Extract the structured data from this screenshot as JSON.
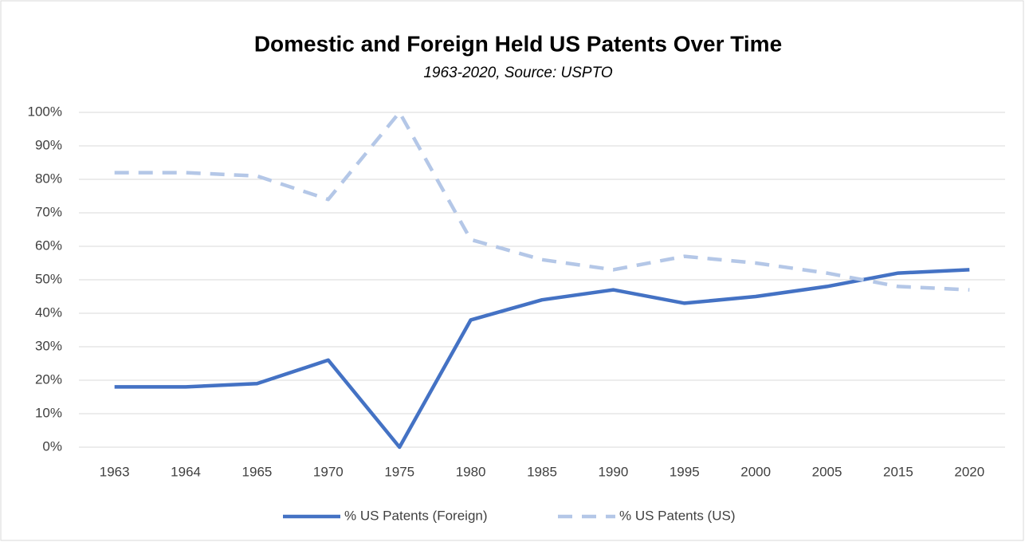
{
  "chart_data": {
    "type": "line",
    "title": "Domestic and Foreign Held US Patents Over Time",
    "subtitle": "1963-2020, Source: USPTO",
    "categories": [
      "1963",
      "1964",
      "1965",
      "1970",
      "1975",
      "1980",
      "1985",
      "1990",
      "1995",
      "2000",
      "2005",
      "2015",
      "2020"
    ],
    "series": [
      {
        "name": "% US Patents (Foreign)",
        "color": "#4472c4",
        "dash": false,
        "values": [
          18,
          18,
          19,
          26,
          0,
          38,
          44,
          47,
          43,
          45,
          48,
          52,
          53
        ]
      },
      {
        "name": "% US Patents (US)",
        "color": "#b4c7e7",
        "dash": true,
        "values": [
          82,
          82,
          81,
          74,
          100,
          62,
          56,
          53,
          57,
          55,
          52,
          48,
          47
        ]
      }
    ],
    "ylim": [
      0,
      100
    ],
    "yticks": [
      {
        "value": 0,
        "label": "0%"
      },
      {
        "value": 10,
        "label": "10%"
      },
      {
        "value": 20,
        "label": "20%"
      },
      {
        "value": 30,
        "label": "30%"
      },
      {
        "value": 40,
        "label": "40%"
      },
      {
        "value": 50,
        "label": "50%"
      },
      {
        "value": 60,
        "label": "60%"
      },
      {
        "value": 70,
        "label": "70%"
      },
      {
        "value": 80,
        "label": "80%"
      },
      {
        "value": 90,
        "label": "90%"
      },
      {
        "value": 100,
        "label": "100%"
      }
    ],
    "grid": true,
    "legend": "bottom"
  }
}
